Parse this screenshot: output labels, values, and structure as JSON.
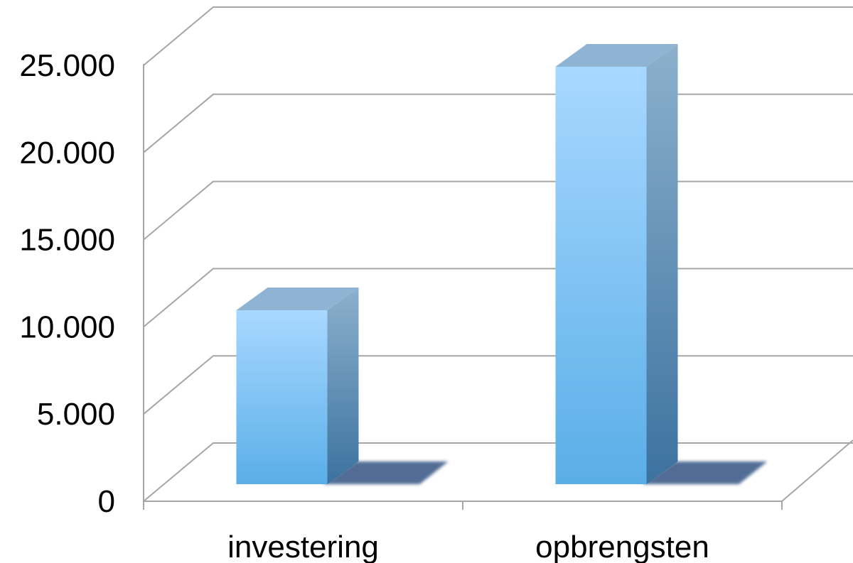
{
  "chart_data": {
    "type": "bar",
    "categories": [
      "investering",
      "opbrengsten"
    ],
    "series": [
      {
        "values": [
          10000,
          24000
        ]
      }
    ],
    "ylim": [
      0,
      25000
    ],
    "yticks": [
      0,
      5000,
      10000,
      15000,
      20000,
      25000
    ],
    "ytick_labels": [
      "0",
      "5.000",
      "10.000",
      "15.000",
      "20.000",
      "25.000"
    ],
    "grid": true,
    "style": "3d"
  },
  "colors": {
    "bar_front_top": "#a8d8ff",
    "bar_front_bottom": "#5aaee8",
    "bar_side_top": "#8cb0cc",
    "bar_side_bottom": "#3c72a0",
    "bar_top": "#8fb3d2",
    "bar_shadow": "#4a6690",
    "grid": "#a6a6a6"
  }
}
